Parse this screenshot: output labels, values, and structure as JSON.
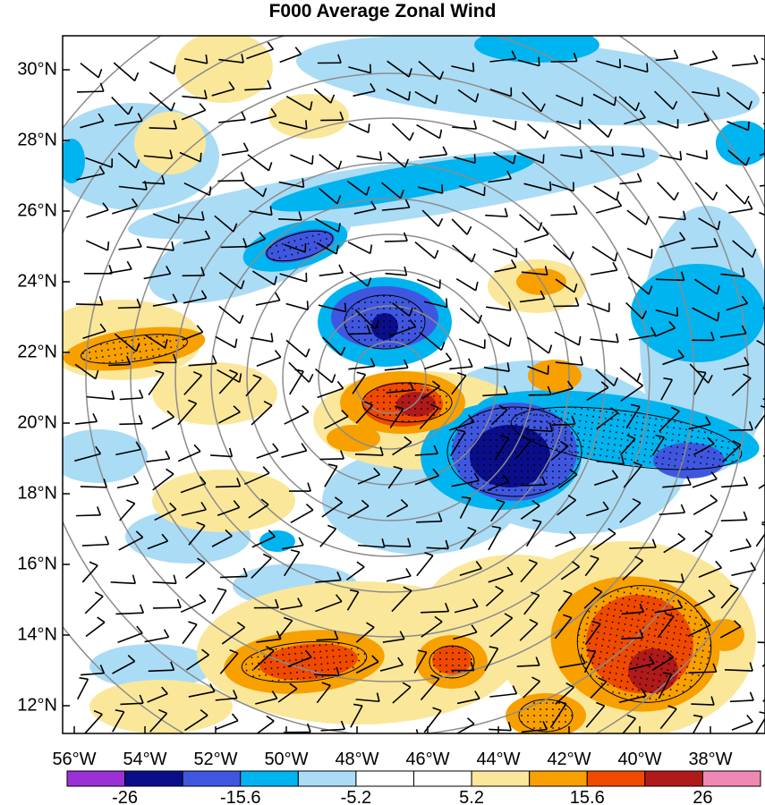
{
  "title": "F000 Average Zonal Wind",
  "lat_labels": [
    "30°N",
    "28°N",
    "26°N",
    "24°N",
    "22°N",
    "20°N",
    "18°N",
    "16°N",
    "14°N",
    "12°N"
  ],
  "lon_labels": [
    "56°W",
    "54°W",
    "52°W",
    "50°W",
    "48°W",
    "46°W",
    "44°W",
    "42°W",
    "40°W",
    "38°W"
  ],
  "colorbar": {
    "colors": [
      "#9b30d6",
      "#0a0e8a",
      "#3f57e0",
      "#00b4f0",
      "#aadcf6",
      "#ffffff",
      "#ffffff",
      "#fbe79a",
      "#f7a000",
      "#f04a00",
      "#b01a1a",
      "#f088b4"
    ],
    "labels": [
      "-26",
      "-15.6",
      "-5.2",
      "5.2",
      "15.6",
      "26"
    ]
  },
  "map_colors": {
    "strong_neg": "#0a0e8a",
    "neg2": "#3f57e0",
    "neg1": "#00b4f0",
    "weak_neg": "#aadcf6",
    "weak_pos": "#fbe79a",
    "pos1": "#f7a000",
    "pos2": "#f04a00",
    "strong_pos": "#b01a1a",
    "ring": "#8c8c8c"
  }
}
